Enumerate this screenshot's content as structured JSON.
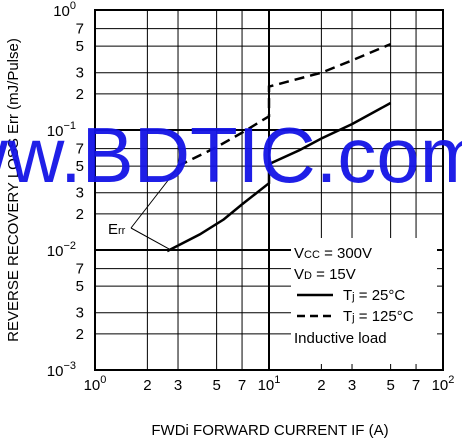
{
  "chart_data": {
    "type": "line",
    "xlabel": "FWDi FORWARD CURRENT  IF (A)",
    "ylabel": "REVERSE RECOVERY LOSS  Err (mJ/Pulse)",
    "x_scale": "log",
    "y_scale": "log",
    "xlim": [
      1,
      100
    ],
    "ylim": [
      0.001,
      1
    ],
    "x_major_labels": [
      {
        "v": 1,
        "text": "10",
        "sup": "0"
      },
      {
        "v": 10,
        "text": "10",
        "sup": "1"
      },
      {
        "v": 100,
        "text": "10",
        "sup": "2"
      }
    ],
    "x_minor_labels": [
      {
        "v": 2,
        "text": "2"
      },
      {
        "v": 3,
        "text": "3"
      },
      {
        "v": 5,
        "text": "5"
      },
      {
        "v": 7,
        "text": "7"
      },
      {
        "v": 20,
        "text": "2"
      },
      {
        "v": 30,
        "text": "3"
      },
      {
        "v": 50,
        "text": "5"
      },
      {
        "v": 70,
        "text": "7"
      }
    ],
    "y_major_labels": [
      {
        "v": 1,
        "text": "10",
        "sup": "0"
      },
      {
        "v": 0.1,
        "text": "10",
        "sup": "−1"
      },
      {
        "v": 0.01,
        "text": "10",
        "sup": "−2"
      },
      {
        "v": 0.001,
        "text": "10",
        "sup": "−3"
      }
    ],
    "y_minor_labels": [
      {
        "v": 0.7,
        "text": "7"
      },
      {
        "v": 0.5,
        "text": "5"
      },
      {
        "v": 0.3,
        "text": "3"
      },
      {
        "v": 0.2,
        "text": "2"
      },
      {
        "v": 0.07,
        "text": "7"
      },
      {
        "v": 0.05,
        "text": "5"
      },
      {
        "v": 0.03,
        "text": "3"
      },
      {
        "v": 0.02,
        "text": "2"
      },
      {
        "v": 0.007,
        "text": "7"
      },
      {
        "v": 0.005,
        "text": "5"
      },
      {
        "v": 0.003,
        "text": "3"
      },
      {
        "v": 0.002,
        "text": "2"
      }
    ],
    "grid_x": [
      1,
      2,
      3,
      5,
      7,
      10,
      20,
      30,
      50,
      70,
      100
    ],
    "grid_y": [
      0.001,
      0.002,
      0.003,
      0.005,
      0.007,
      0.01,
      0.02,
      0.03,
      0.05,
      0.07,
      0.1,
      0.2,
      0.3,
      0.5,
      0.7,
      1
    ],
    "series": [
      {
        "name": "Tj = 25°C",
        "style": "solid",
        "x": [
          2.6,
          4,
          5.5,
          7,
          10,
          10,
          15,
          20,
          30,
          50
        ],
        "y": [
          0.0098,
          0.0135,
          0.018,
          0.024,
          0.036,
          0.052,
          0.068,
          0.085,
          0.112,
          0.168
        ]
      },
      {
        "name": "Tj = 125°C",
        "style": "dashed",
        "x": [
          3,
          5,
          7,
          10,
          10,
          20,
          30,
          50
        ],
        "y": [
          0.05,
          0.072,
          0.095,
          0.13,
          0.23,
          0.3,
          0.38,
          0.52
        ]
      }
    ],
    "annotation": {
      "text": "Err",
      "sub": "rr"
    },
    "legend": {
      "location": "bottom-right",
      "conditions": [
        {
          "main": "V",
          "sub": "CC",
          "rest": " = 300V"
        },
        {
          "main": "V",
          "sub": "D",
          "rest": " = 15V"
        }
      ],
      "entries": [
        {
          "style": "solid",
          "main": "T",
          "sub": "j",
          "rest": " = 25°C"
        },
        {
          "style": "dashed",
          "main": "T",
          "sub": "j",
          "rest": " = 125°C"
        }
      ],
      "note": "Inductive load"
    },
    "watermark": "www.BDTIC.com"
  }
}
